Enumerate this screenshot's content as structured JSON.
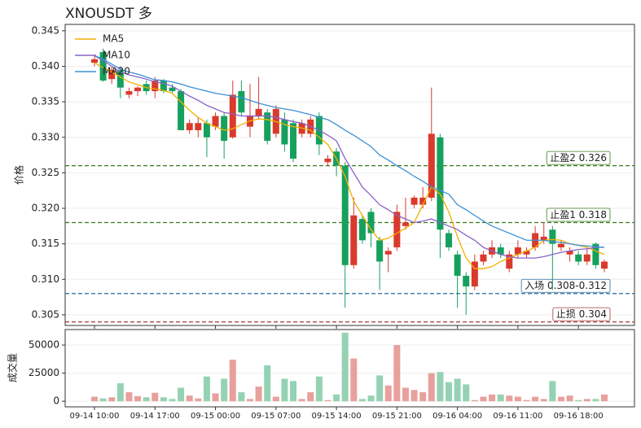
{
  "chart_data": [
    {
      "type": "candlestick",
      "title": "XNOUSDT  多",
      "ylabel": "价格",
      "ylim": [
        0.3035,
        0.3459
      ],
      "yticks": [
        0.305,
        {
          "value": 0.31,
          "label": "0.310"
        },
        0.315,
        {
          "value": 0.32,
          "label": "0.320"
        },
        0.325,
        {
          "value": 0.33,
          "label": "0.330"
        },
        0.335,
        {
          "value": 0.34,
          "label": "0.340"
        },
        0.345
      ],
      "grid": true,
      "up_color": "#d93a2b",
      "down_color": "#16a05d",
      "open": [
        0.3405,
        0.342,
        0.3382,
        0.3395,
        0.336,
        0.3365,
        0.3375,
        0.3365,
        0.338,
        0.337,
        0.3365,
        0.331,
        0.331,
        0.332,
        0.3315,
        0.333,
        0.33,
        0.3365,
        0.3315,
        0.333,
        0.3335,
        0.3305,
        0.3325,
        0.332,
        0.3305,
        0.3305,
        0.333,
        0.3265,
        0.328,
        0.326,
        0.312,
        0.3185,
        0.3195,
        0.3155,
        0.3135,
        0.3145,
        0.3175,
        0.3205,
        0.3205,
        0.3215,
        0.33,
        0.3165,
        0.3135,
        0.3105,
        0.309,
        0.3125,
        0.3135,
        0.3145,
        0.3115,
        0.3135,
        0.3135,
        0.3145,
        0.3155,
        0.317,
        0.3145,
        0.3135,
        0.3135,
        0.3125,
        0.315,
        0.3115
      ],
      "high": [
        0.3415,
        0.3425,
        0.34,
        0.34,
        0.337,
        0.3372,
        0.338,
        0.3385,
        0.3382,
        0.3375,
        0.3368,
        0.3325,
        0.3328,
        0.3325,
        0.3335,
        0.3335,
        0.338,
        0.338,
        0.3375,
        0.3385,
        0.334,
        0.3345,
        0.3335,
        0.3325,
        0.3325,
        0.333,
        0.3335,
        0.3275,
        0.3285,
        0.3265,
        0.3215,
        0.319,
        0.32,
        0.316,
        0.3145,
        0.3205,
        0.3215,
        0.3218,
        0.323,
        0.337,
        0.3305,
        0.317,
        0.314,
        0.311,
        0.3135,
        0.314,
        0.3155,
        0.315,
        0.314,
        0.3155,
        0.3145,
        0.3175,
        0.318,
        0.3175,
        0.3155,
        0.3145,
        0.314,
        0.3145,
        0.3152,
        0.3128
      ],
      "low": [
        0.34,
        0.3378,
        0.3375,
        0.3355,
        0.3355,
        0.3358,
        0.336,
        0.3355,
        0.3362,
        0.3362,
        0.331,
        0.3305,
        0.33,
        0.3272,
        0.331,
        0.327,
        0.3298,
        0.333,
        0.33,
        0.3325,
        0.329,
        0.33,
        0.328,
        0.3265,
        0.33,
        0.33,
        0.3275,
        0.326,
        0.3245,
        0.306,
        0.3115,
        0.315,
        0.3145,
        0.3085,
        0.311,
        0.314,
        0.317,
        0.32,
        0.32,
        0.321,
        0.313,
        0.314,
        0.306,
        0.305,
        0.3085,
        0.312,
        0.313,
        0.313,
        0.311,
        0.313,
        0.313,
        0.314,
        0.315,
        0.3085,
        0.314,
        0.3125,
        0.312,
        0.312,
        0.3115,
        0.311
      ],
      "close": [
        0.341,
        0.338,
        0.3395,
        0.337,
        0.3365,
        0.337,
        0.3365,
        0.338,
        0.3365,
        0.3365,
        0.331,
        0.332,
        0.332,
        0.33,
        0.333,
        0.3295,
        0.336,
        0.3335,
        0.333,
        0.334,
        0.3295,
        0.334,
        0.329,
        0.327,
        0.332,
        0.3325,
        0.329,
        0.327,
        0.326,
        0.312,
        0.319,
        0.3155,
        0.3165,
        0.3125,
        0.314,
        0.3195,
        0.318,
        0.3215,
        0.3215,
        0.3305,
        0.317,
        0.3145,
        0.3105,
        0.309,
        0.3125,
        0.3135,
        0.3145,
        0.3135,
        0.3135,
        0.3145,
        0.314,
        0.3165,
        0.316,
        0.315,
        0.315,
        0.314,
        0.3125,
        0.3135,
        0.312,
        0.3125
      ],
      "series": [
        {
          "name": "MA5",
          "color": "#f0b000",
          "values": [
            0.3405,
            0.3398,
            0.3392,
            0.3385,
            0.3378,
            0.3374,
            0.337,
            0.3368,
            0.3366,
            0.3362,
            0.335,
            0.3338,
            0.3328,
            0.332,
            0.3315,
            0.331,
            0.3312,
            0.3318,
            0.3323,
            0.3326,
            0.3325,
            0.3322,
            0.3318,
            0.3315,
            0.3313,
            0.331,
            0.33,
            0.329,
            0.327,
            0.3245,
            0.321,
            0.319,
            0.317,
            0.3155,
            0.3158,
            0.3165,
            0.3172,
            0.318,
            0.3205,
            0.323,
            0.322,
            0.3195,
            0.316,
            0.313,
            0.3115,
            0.3115,
            0.3118,
            0.3125,
            0.313,
            0.3135,
            0.314,
            0.3145,
            0.3155,
            0.3156,
            0.3155,
            0.315,
            0.3148,
            0.3145,
            0.314,
            0.3135
          ]
        },
        {
          "name": "MA10",
          "color": "#8a63c8",
          "values": [
            0.3415,
            0.3408,
            0.34,
            0.3392,
            0.3388,
            0.3385,
            0.3382,
            0.3378,
            0.3376,
            0.3372,
            0.3365,
            0.3358,
            0.3352,
            0.3345,
            0.334,
            0.3335,
            0.3333,
            0.333,
            0.333,
            0.333,
            0.333,
            0.3328,
            0.3325,
            0.3322,
            0.332,
            0.3315,
            0.331,
            0.3303,
            0.3295,
            0.327,
            0.325,
            0.323,
            0.3218,
            0.3205,
            0.3198,
            0.319,
            0.3185,
            0.318,
            0.3182,
            0.3185,
            0.318,
            0.3175,
            0.317,
            0.3162,
            0.3155,
            0.3145,
            0.314,
            0.3135,
            0.3132,
            0.313,
            0.313,
            0.313,
            0.3132,
            0.3135,
            0.3138,
            0.314,
            0.3142,
            0.3143,
            0.3145,
            0.3145
          ]
        },
        {
          "name": "MA20",
          "color": "#3b8fd4",
          "values": [
            0.3415,
            0.341,
            0.3403,
            0.3396,
            0.3392,
            0.3389,
            0.3385,
            0.3381,
            0.338,
            0.3378,
            0.3375,
            0.3371,
            0.3368,
            0.3365,
            0.3362,
            0.336,
            0.3358,
            0.3356,
            0.3352,
            0.3348,
            0.3345,
            0.3342,
            0.334,
            0.3338,
            0.3335,
            0.3332,
            0.3328,
            0.3325,
            0.3318,
            0.331,
            0.3303,
            0.3295,
            0.3287,
            0.3275,
            0.3268,
            0.326,
            0.3253,
            0.3245,
            0.3238,
            0.323,
            0.3225,
            0.322,
            0.3205,
            0.3198,
            0.319,
            0.3182,
            0.3175,
            0.317,
            0.3165,
            0.316,
            0.3155,
            0.3155,
            0.3155,
            0.3153,
            0.3152,
            0.315,
            0.3148,
            0.3147,
            0.3146,
            0.3145
          ]
        }
      ],
      "legend": "upper left",
      "levels": [
        {
          "label": "止盈2 0.326",
          "value": 0.326,
          "color": "#3a7a1e"
        },
        {
          "label": "止盈1 0.318",
          "value": 0.318,
          "color": "#3a7a1e"
        },
        {
          "label": "入场 0.308-0.312",
          "value": 0.308,
          "color": "#2a6a9a"
        },
        {
          "label": "止损 0.304",
          "value": 0.304,
          "color": "#a33a3a"
        }
      ]
    },
    {
      "type": "volume",
      "ylabel": "成交量",
      "ylim": [
        -5000,
        63800
      ],
      "yticks": [
        0,
        25000,
        50000
      ],
      "grid": true,
      "up_color": "#e8a09d",
      "down_color": "#95d2b4",
      "categories": [
        "09-14 10:00",
        null,
        null,
        null,
        null,
        null,
        null,
        "09-14 17:00",
        null,
        null,
        null,
        null,
        null,
        null,
        "09-15 00:00",
        null,
        null,
        null,
        null,
        null,
        null,
        "09-15 07:00",
        null,
        null,
        null,
        null,
        null,
        null,
        "09-15 14:00",
        null,
        null,
        null,
        null,
        null,
        null,
        "09-15 21:00",
        null,
        null,
        null,
        null,
        null,
        null,
        "09-16 04:00",
        null,
        null,
        null,
        null,
        null,
        null,
        "09-16 11:00",
        null,
        null,
        null,
        null,
        null,
        null,
        "09-16 18:00",
        null,
        null,
        null
      ],
      "values": [
        4000,
        2500,
        3500,
        16000,
        8000,
        4500,
        3500,
        7500,
        3500,
        2000,
        12000,
        5000,
        2500,
        22000,
        7000,
        20000,
        37000,
        8000,
        2000,
        13000,
        32000,
        4000,
        20000,
        18000,
        2000,
        8000,
        22000,
        1000,
        6000,
        61000,
        38000,
        2000,
        5000,
        23000,
        14000,
        50000,
        12000,
        10000,
        8000,
        25000,
        26000,
        17000,
        20000,
        15000,
        1000,
        4000,
        6000,
        6000,
        5000,
        4000,
        1000,
        4000,
        2000,
        18000,
        4000,
        5000,
        1000,
        2000,
        2000,
        6000
      ]
    }
  ]
}
